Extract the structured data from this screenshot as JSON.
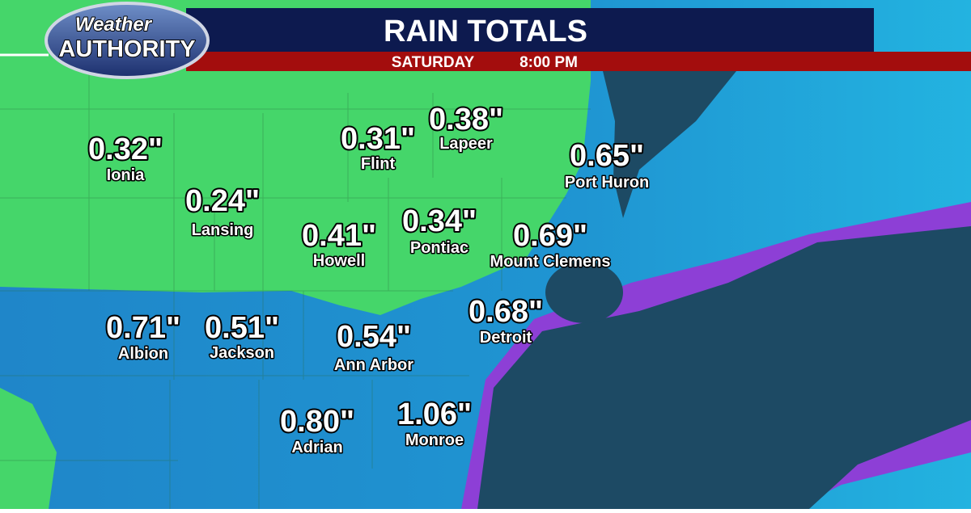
{
  "header": {
    "logo_top": "Weather",
    "logo_bottom": "AUTHORITY",
    "title": "RAIN TOTALS",
    "day": "SATURDAY",
    "time": "8:00 PM"
  },
  "cities": [
    {
      "amount": "0.32\"",
      "name": "Ionia"
    },
    {
      "amount": "0.24\"",
      "name": "Lansing"
    },
    {
      "amount": "0.31\"",
      "name": "Flint"
    },
    {
      "amount": "0.38\"",
      "name": "Lapeer"
    },
    {
      "amount": "0.65\"",
      "name": "Port Huron"
    },
    {
      "amount": "0.41\"",
      "name": "Howell"
    },
    {
      "amount": "0.34\"",
      "name": "Pontiac"
    },
    {
      "amount": "0.69\"",
      "name": "Mount Clemens"
    },
    {
      "amount": "0.71\"",
      "name": "Albion"
    },
    {
      "amount": "0.51\"",
      "name": "Jackson"
    },
    {
      "amount": "0.54\"",
      "name": "Ann Arbor"
    },
    {
      "amount": "0.68\"",
      "name": "Detroit"
    },
    {
      "amount": "0.80\"",
      "name": "Adrian"
    },
    {
      "amount": "1.06\"",
      "name": "Monroe"
    }
  ]
}
